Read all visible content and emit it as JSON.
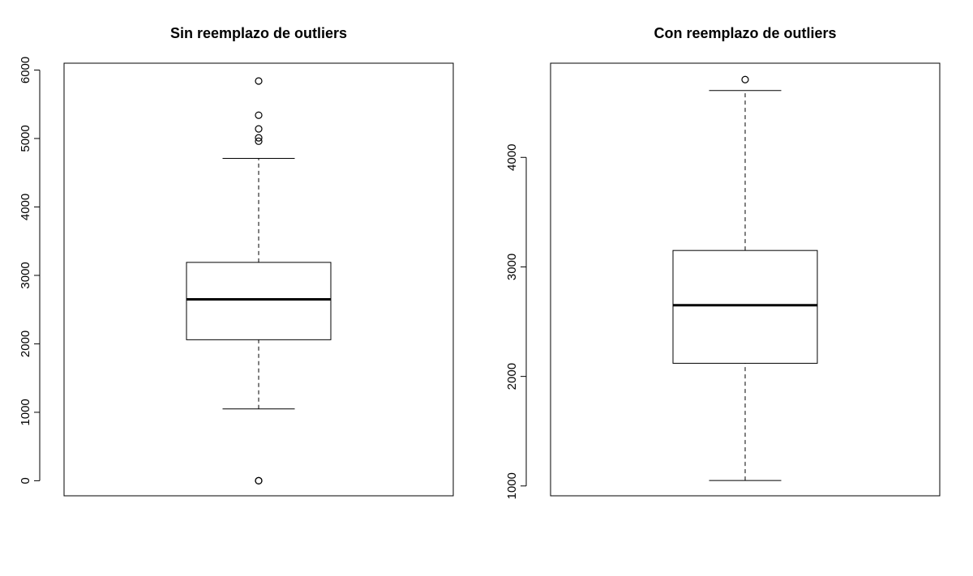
{
  "chart_data": [
    {
      "type": "box",
      "title": "Sin reemplazo de outliers",
      "ylim": [
        -220,
        6100
      ],
      "yticks": [
        0,
        1000,
        2000,
        3000,
        4000,
        5000,
        6000
      ],
      "ytick_labels": [
        "0",
        "1000",
        "2000",
        "3000",
        "4000",
        "5000",
        "6000"
      ],
      "box": {
        "whisker_low": 1050,
        "q1": 2060,
        "median": 2650,
        "q3": 3190,
        "whisker_high": 4710
      },
      "outliers": [
        5840,
        5340,
        5140,
        5010,
        4960,
        0,
        0
      ]
    },
    {
      "type": "box",
      "title": "Con reemplazo de outliers",
      "ylim": [
        910,
        4860
      ],
      "yticks": [
        1000,
        2000,
        3000,
        4000
      ],
      "ytick_labels": [
        "1000",
        "2000",
        "3000",
        "4000"
      ],
      "box": {
        "whisker_low": 1050,
        "q1": 2120,
        "median": 2650,
        "q3": 3150,
        "whisker_high": 4610
      },
      "outliers": [
        4710
      ]
    }
  ]
}
